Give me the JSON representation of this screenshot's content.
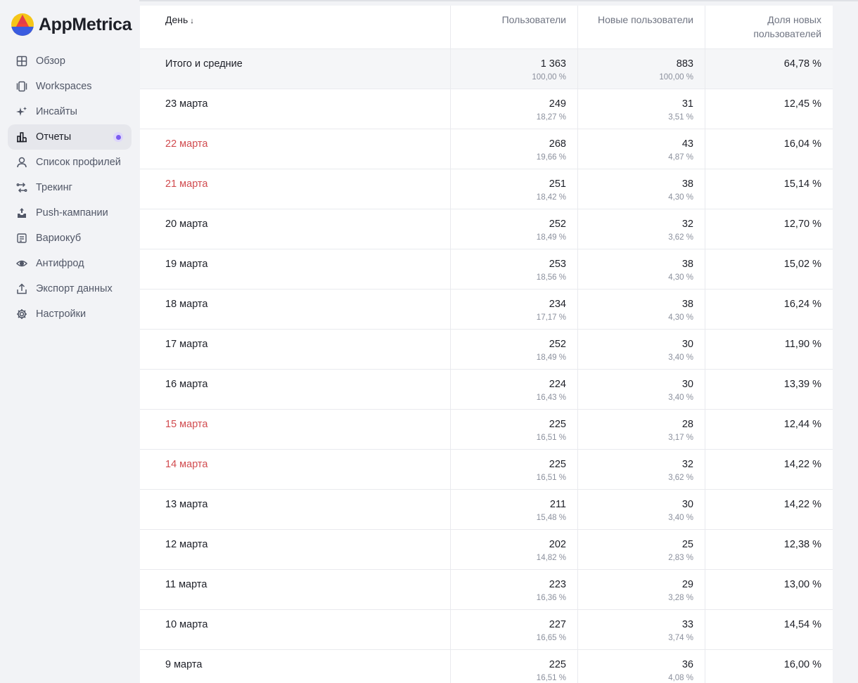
{
  "app": {
    "logo_text": "AppMetrica"
  },
  "sidebar": {
    "items": [
      {
        "label": "Обзор",
        "icon": "grid-icon",
        "active": false
      },
      {
        "label": "Workspaces",
        "icon": "workspaces-icon",
        "active": false
      },
      {
        "label": "Инсайты",
        "icon": "sparkle-icon",
        "active": false
      },
      {
        "label": "Отчеты",
        "icon": "bar-chart-icon",
        "active": true
      },
      {
        "label": "Список профилей",
        "icon": "user-icon",
        "active": false
      },
      {
        "label": "Трекинг",
        "icon": "tracking-icon",
        "active": false
      },
      {
        "label": "Push-кампании",
        "icon": "push-icon",
        "active": false
      },
      {
        "label": "Вариокуб",
        "icon": "variocube-icon",
        "active": false
      },
      {
        "label": "Антифрод",
        "icon": "eye-icon",
        "active": false
      },
      {
        "label": "Экспорт данных",
        "icon": "export-icon",
        "active": false
      },
      {
        "label": "Настройки",
        "icon": "gear-icon",
        "active": false
      }
    ]
  },
  "table": {
    "headers": {
      "day": "День",
      "sort_arrow": "↓",
      "users": "Пользователи",
      "new_users": "Новые пользователи",
      "share_line1": "Доля новых",
      "share_line2": "пользователей"
    },
    "total": {
      "label": "Итого и средние",
      "users": "1 363",
      "users_pct": "100,00 %",
      "new_users": "883",
      "new_users_pct": "100,00 %",
      "share": "64,78 %"
    },
    "rows": [
      {
        "day": "23 марта",
        "weekend": false,
        "users": "249",
        "users_pct": "18,27 %",
        "new_users": "31",
        "new_users_pct": "3,51 %",
        "share": "12,45 %"
      },
      {
        "day": "22 марта",
        "weekend": true,
        "users": "268",
        "users_pct": "19,66 %",
        "new_users": "43",
        "new_users_pct": "4,87 %",
        "share": "16,04 %"
      },
      {
        "day": "21 марта",
        "weekend": true,
        "users": "251",
        "users_pct": "18,42 %",
        "new_users": "38",
        "new_users_pct": "4,30 %",
        "share": "15,14 %"
      },
      {
        "day": "20 марта",
        "weekend": false,
        "users": "252",
        "users_pct": "18,49 %",
        "new_users": "32",
        "new_users_pct": "3,62 %",
        "share": "12,70 %"
      },
      {
        "day": "19 марта",
        "weekend": false,
        "users": "253",
        "users_pct": "18,56 %",
        "new_users": "38",
        "new_users_pct": "4,30 %",
        "share": "15,02 %"
      },
      {
        "day": "18 марта",
        "weekend": false,
        "users": "234",
        "users_pct": "17,17 %",
        "new_users": "38",
        "new_users_pct": "4,30 %",
        "share": "16,24 %"
      },
      {
        "day": "17 марта",
        "weekend": false,
        "users": "252",
        "users_pct": "18,49 %",
        "new_users": "30",
        "new_users_pct": "3,40 %",
        "share": "11,90 %"
      },
      {
        "day": "16 марта",
        "weekend": false,
        "users": "224",
        "users_pct": "16,43 %",
        "new_users": "30",
        "new_users_pct": "3,40 %",
        "share": "13,39 %"
      },
      {
        "day": "15 марта",
        "weekend": true,
        "users": "225",
        "users_pct": "16,51 %",
        "new_users": "28",
        "new_users_pct": "3,17 %",
        "share": "12,44 %"
      },
      {
        "day": "14 марта",
        "weekend": true,
        "users": "225",
        "users_pct": "16,51 %",
        "new_users": "32",
        "new_users_pct": "3,62 %",
        "share": "14,22 %"
      },
      {
        "day": "13 марта",
        "weekend": false,
        "users": "211",
        "users_pct": "15,48 %",
        "new_users": "30",
        "new_users_pct": "3,40 %",
        "share": "14,22 %"
      },
      {
        "day": "12 марта",
        "weekend": false,
        "users": "202",
        "users_pct": "14,82 %",
        "new_users": "25",
        "new_users_pct": "2,83 %",
        "share": "12,38 %"
      },
      {
        "day": "11 марта",
        "weekend": false,
        "users": "223",
        "users_pct": "16,36 %",
        "new_users": "29",
        "new_users_pct": "3,28 %",
        "share": "13,00 %"
      },
      {
        "day": "10 марта",
        "weekend": false,
        "users": "227",
        "users_pct": "16,65 %",
        "new_users": "33",
        "new_users_pct": "3,74 %",
        "share": "14,54 %"
      },
      {
        "day": "9 марта",
        "weekend": false,
        "users": "225",
        "users_pct": "16,51 %",
        "new_users": "36",
        "new_users_pct": "4,08 %",
        "share": "16,00 %"
      }
    ]
  },
  "colors": {
    "weekend_text": "#d14b4f",
    "active_dot": "#7b5cf0",
    "logo_yellow": "#f5c518",
    "logo_red": "#f0443a",
    "logo_blue": "#3a5ce0"
  }
}
